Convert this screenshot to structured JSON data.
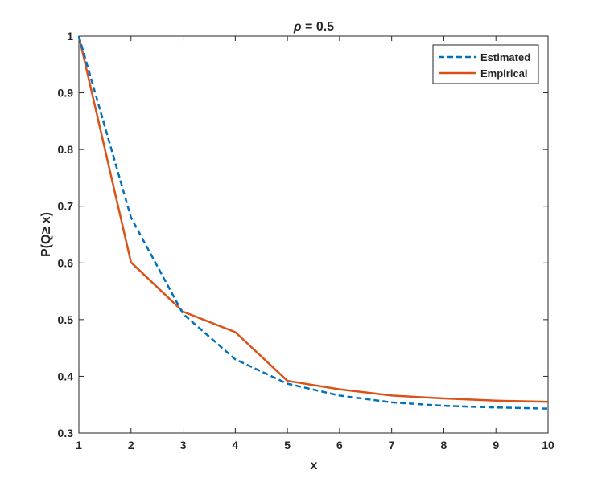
{
  "chart_data": {
    "type": "line",
    "title": "ρ = 0.5",
    "title_symbol": "ρ",
    "title_rest": " = 0.5",
    "xlabel": "x",
    "ylabel": "P(Q≥ x)",
    "xlim": [
      1,
      10
    ],
    "ylim": [
      0.3,
      1.0
    ],
    "xticks": [
      1,
      2,
      3,
      4,
      5,
      6,
      7,
      8,
      9,
      10
    ],
    "yticks": [
      0.3,
      0.4,
      0.5,
      0.6,
      0.7,
      0.8,
      0.9,
      1.0
    ],
    "xtick_labels": [
      "1",
      "2",
      "3",
      "4",
      "5",
      "6",
      "7",
      "8",
      "9",
      "10"
    ],
    "ytick_labels": [
      "0.3",
      "0.4",
      "0.5",
      "0.6",
      "0.7",
      "0.8",
      "0.9",
      "1"
    ],
    "grid": false,
    "legend_position": "top-right",
    "x": [
      1,
      2,
      3,
      4,
      5,
      6,
      7,
      8,
      9,
      10
    ],
    "series": [
      {
        "name": "Estimated",
        "color": "#0072BD",
        "style": "dashed",
        "values": [
          1.0,
          0.68,
          0.51,
          0.43,
          0.387,
          0.366,
          0.354,
          0.348,
          0.345,
          0.343
        ]
      },
      {
        "name": "Empirical",
        "color": "#D95319",
        "style": "solid",
        "values": [
          1.0,
          0.601,
          0.514,
          0.478,
          0.392,
          0.377,
          0.366,
          0.361,
          0.357,
          0.355
        ]
      }
    ]
  }
}
